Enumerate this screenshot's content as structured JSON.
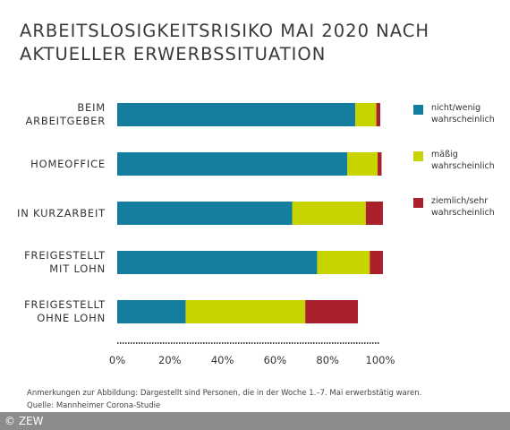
{
  "title_lines": [
    "ARBEITSLOSIGKEITSRISIKO MAI 2020 NACH",
    "AKTUELLER ERWERBSSITUATION"
  ],
  "chart_data": {
    "type": "bar",
    "orientation": "horizontal",
    "stacked": true,
    "title": "ARBEITSLOSIGKEITSRISIKO MAI 2020 NACH AKTUELLER ERWERBSSITUATION",
    "categories": [
      [
        "BEIM",
        "ARBEITGEBER"
      ],
      [
        "HOMEOFFICE"
      ],
      [
        "IN KURZARBEIT"
      ],
      [
        "FREIGESTELLT",
        "MIT LOHN"
      ],
      [
        "FREIGESTELLT",
        "OHNE LOHN"
      ]
    ],
    "series": [
      {
        "name": "nicht/wenig wahrscheinlich",
        "name_lines": [
          "nicht/wenig",
          "wahrscheinlich"
        ],
        "color": "#137ea0",
        "values": [
          90.5,
          87.5,
          66.5,
          76,
          26
        ]
      },
      {
        "name": "mäßig wahrscheinlich",
        "name_lines": [
          "mäßig",
          "wahrscheinlich"
        ],
        "color": "#c8d400",
        "values": [
          8,
          11.5,
          28,
          20,
          45.5
        ]
      },
      {
        "name": "ziemlich/sehr wahrscheinlich",
        "name_lines": [
          "ziemlich/sehr",
          "wahrscheinlich"
        ],
        "color": "#a8202a",
        "values": [
          1.5,
          1.5,
          6.5,
          5,
          20
        ]
      }
    ],
    "xlim": [
      0,
      100
    ],
    "xticks": [
      "0%",
      "20%",
      "40%",
      "60%",
      "80%",
      "100%"
    ],
    "grid": false,
    "legend_position": "right"
  },
  "notes": [
    "Anmerkungen zur Abbildung: Dargestellt sind Personen, die in der Woche 1.–7. Mai erwerbstätig waren.",
    "Quelle: Mannheimer Corona-Studie"
  ],
  "copyright": "© ZEW"
}
